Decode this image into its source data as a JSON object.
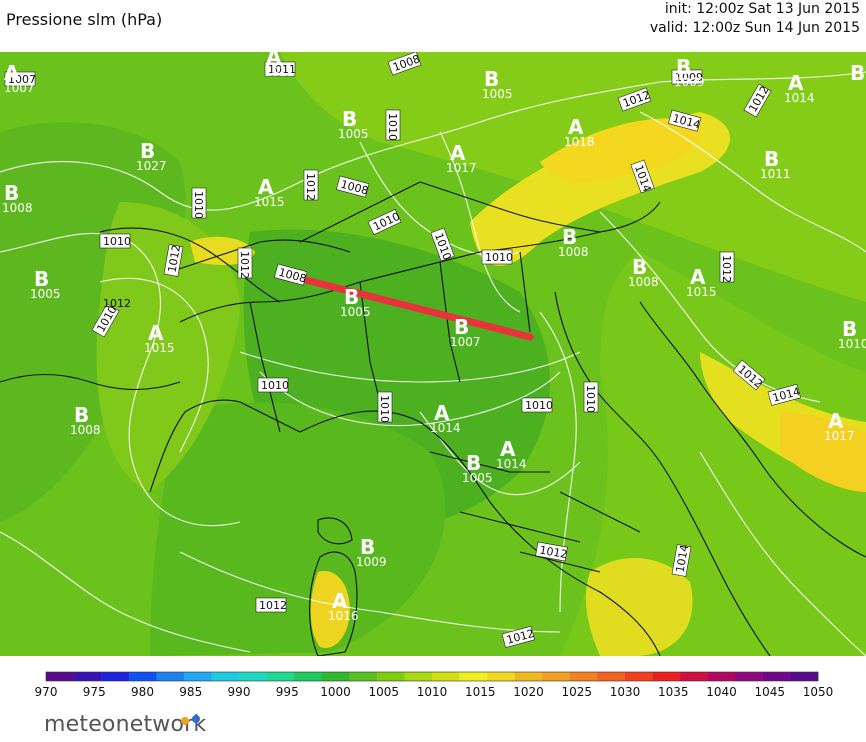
{
  "header": {
    "title": "Pressione slm (hPa)",
    "init": "init: 12:00z Sat 13 Jun 2015",
    "valid": "valid: 12:00z Sun 14 Jun 2015"
  },
  "map_data": {
    "field": "sea level pressure",
    "units": "hPa",
    "region": "Northern and Central Italy, Alps, Adriatic",
    "isobar_labels": [
      "1007",
      "1008",
      "1011",
      "1009",
      "1014",
      "1012",
      "1010",
      "1012",
      "1008",
      "1010",
      "1014",
      "1012",
      "1010",
      "1010",
      "1010",
      "1012",
      "1008",
      "1012",
      "1010",
      "1010",
      "1010",
      "1012",
      "1014",
      "1010",
      "1012",
      "1010",
      "1012",
      "1012",
      "1012",
      "1014",
      "1012",
      "1010"
    ],
    "pressure_centers": [
      {
        "type": "A",
        "value": "1007"
      },
      {
        "type": "B",
        "value": "1010"
      },
      {
        "type": "A",
        "value": "1011"
      },
      {
        "type": "B",
        "value": "1005"
      },
      {
        "type": "B",
        "value": "1009"
      },
      {
        "type": "A",
        "value": "1014"
      },
      {
        "type": "B",
        "value": "1005"
      },
      {
        "type": "B",
        "value": "1027"
      },
      {
        "type": "A",
        "value": "1018"
      },
      {
        "type": "B",
        "value": "1011"
      },
      {
        "type": "A",
        "value": "1017"
      },
      {
        "type": "B",
        "value": "1008"
      },
      {
        "type": "A",
        "value": "1015"
      },
      {
        "type": "B",
        "value": "1008"
      },
      {
        "type": "B",
        "value": "1005"
      },
      {
        "type": "B",
        "value": "1008"
      },
      {
        "type": "A",
        "value": "1015"
      },
      {
        "type": "B",
        "value": "1010"
      },
      {
        "type": "A",
        "value": "1015"
      },
      {
        "type": "B",
        "value": "1005"
      },
      {
        "type": "B",
        "value": "1007"
      },
      {
        "type": "B",
        "value": "1008"
      },
      {
        "type": "A",
        "value": "1014"
      },
      {
        "type": "B",
        "value": "1005"
      },
      {
        "type": "A",
        "value": "1014"
      },
      {
        "type": "A",
        "value": "1017"
      },
      {
        "type": "B",
        "value": "1009"
      },
      {
        "type": "A",
        "value": "1016"
      }
    ],
    "cross_section_line_color": "#e8323c"
  },
  "colorbar": {
    "ticks": [
      "970",
      "975",
      "980",
      "985",
      "990",
      "995",
      "1000",
      "1005",
      "1010",
      "1015",
      "1020",
      "1025",
      "1030",
      "1035",
      "1040",
      "1045",
      "1050"
    ],
    "colors": [
      "#5a0a8c",
      "#3a12b4",
      "#2020e0",
      "#1050f0",
      "#1a80f0",
      "#20a8f0",
      "#20c8e0",
      "#20d8c0",
      "#20d890",
      "#20c860",
      "#30b830",
      "#58c020",
      "#80cc10",
      "#a8d810",
      "#d0e010",
      "#f0f020",
      "#f0d820",
      "#f0b820",
      "#f0a020",
      "#f08020",
      "#f06020",
      "#f04020",
      "#e82020",
      "#d01040",
      "#b00860",
      "#900880",
      "#70088c",
      "#5a0a8c"
    ]
  },
  "brand": {
    "name": "meteonetwork"
  }
}
